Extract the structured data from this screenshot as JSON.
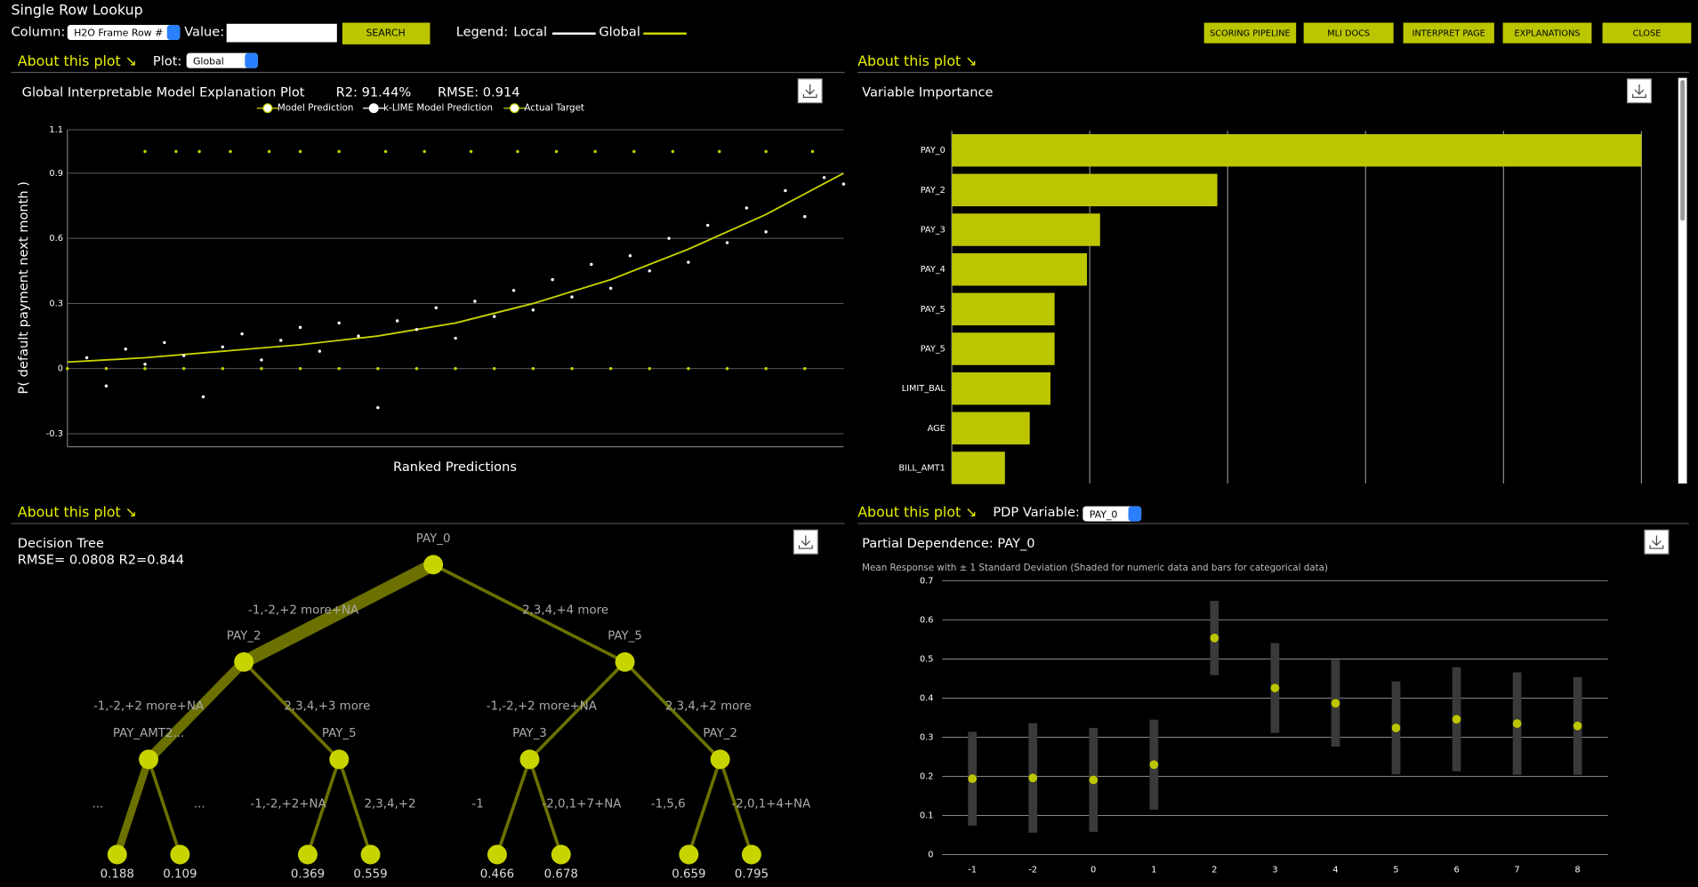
{
  "header": {
    "title": "Single Row Lookup",
    "column_label": "Column:",
    "column_value": "H2O Frame Row #",
    "value_label": "Value:",
    "search": "SEARCH",
    "legend_label": "Legend:",
    "legend_local": "Local",
    "legend_global": "Global",
    "buttons": [
      "SCORING PIPELINE",
      "MLI DOCS",
      "INTERPRET PAGE",
      "EXPLANATIONS",
      "CLOSE"
    ]
  },
  "global_panel": {
    "about": "About this plot ↘",
    "plot_label": "Plot:",
    "plot_value": "Global",
    "chart_data": {
      "type": "scatter",
      "title": "Global Interpretable Model Explanation Plot",
      "r2": "R2: 91.44%",
      "rmse": "RMSE: 0.914",
      "y_label": "P( default payment next month )",
      "x_label": "Ranked Predictions",
      "xlim": [
        0,
        100
      ],
      "ylim": [
        -0.36,
        1.1
      ],
      "yticks": [
        -0.3,
        0,
        0.3,
        0.6,
        0.9,
        1.1
      ],
      "series": [
        {
          "name": "Model Prediction",
          "color": "#c8d400",
          "style": "line",
          "x": [
            0,
            10,
            20,
            30,
            40,
            50,
            60,
            70,
            80,
            90,
            100
          ],
          "values": [
            0.03,
            0.05,
            0.08,
            0.11,
            0.15,
            0.21,
            0.3,
            0.41,
            0.55,
            0.71,
            0.9
          ]
        },
        {
          "name": "k-LIME Model Prediction",
          "color": "#ffffff",
          "style": "points",
          "x": [
            2.5,
            5,
            7.5,
            10,
            12.5,
            15,
            17.5,
            20,
            22.5,
            25,
            27.5,
            30,
            32.5,
            35,
            37.5,
            40,
            42.5,
            45,
            47.5,
            50,
            52.5,
            55,
            57.5,
            60,
            62.5,
            65,
            67.5,
            70,
            72.5,
            75,
            77.5,
            80,
            82.5,
            85,
            87.5,
            90,
            92.5,
            95,
            97.5,
            100
          ],
          "values": [
            0.05,
            -0.08,
            0.09,
            0.02,
            0.12,
            0.06,
            -0.13,
            0.1,
            0.16,
            0.04,
            0.13,
            0.19,
            0.08,
            0.21,
            0.15,
            -0.18,
            0.22,
            0.18,
            0.28,
            0.14,
            0.31,
            0.24,
            0.36,
            0.27,
            0.41,
            0.33,
            0.48,
            0.37,
            0.52,
            0.45,
            0.6,
            0.49,
            0.66,
            0.58,
            0.74,
            0.63,
            0.82,
            0.7,
            0.88,
            0.85
          ]
        },
        {
          "name": "Actual Target",
          "color": "#c8d400",
          "style": "points",
          "x": [
            10,
            14,
            17,
            21,
            26,
            30,
            35,
            41,
            46,
            52,
            58,
            63,
            68,
            73,
            78,
            84,
            90,
            96,
            0,
            5,
            10,
            15,
            20,
            25,
            30,
            35,
            40,
            45,
            50,
            55,
            60,
            65,
            70,
            75,
            80,
            85,
            90,
            95
          ],
          "values": [
            1,
            1,
            1,
            1,
            1,
            1,
            1,
            1,
            1,
            1,
            1,
            1,
            1,
            1,
            1,
            1,
            1,
            1,
            0,
            0,
            0,
            0,
            0,
            0,
            0,
            0,
            0,
            0,
            0,
            0,
            0,
            0,
            0,
            0,
            0,
            0,
            0,
            0
          ]
        }
      ]
    }
  },
  "importance_panel": {
    "about": "About this plot ↘",
    "chart_data": {
      "type": "hbar",
      "title": "Variable Importance",
      "categories": [
        "PAY_0",
        "PAY_2",
        "PAY_3",
        "PAY_4",
        "PAY_5",
        "PAY_5",
        "LIMIT_BAL",
        "AGE",
        "BILL_AMT1"
      ],
      "values": [
        1,
        0.385,
        0.215,
        0.196,
        0.149,
        0.149,
        0.143,
        0.113,
        0.077
      ],
      "color": "#bcc600",
      "xlim": [
        0,
        1
      ],
      "xticks": [
        0,
        0.2,
        0.4,
        0.6,
        0.8,
        1
      ]
    }
  },
  "tree_panel": {
    "about": "About this plot ↘",
    "title": "Decision Tree",
    "metrics": "RMSE= 0.0808 R2=0.844",
    "nodes": [
      "PAY_0",
      "PAY_2",
      "PAY_5",
      "PAY_AMT2...",
      "PAY_5",
      "PAY_3",
      "PAY_2",
      "0.188",
      "0.109",
      "0.369",
      "0.559",
      "0.466",
      "0.678",
      "0.659",
      "0.795"
    ],
    "edges": [
      "-1,-2,+2 more+NA",
      "2,3,4,+4 more",
      "-1,-2,+2 more+NA",
      "2,3,4,+3 more",
      "-1,-2,+2 more+NA",
      "2,3,4,+2 more",
      "...",
      "...",
      "-1,-2,+2+NA",
      "2,3,4,+2",
      "-1",
      "-2,0,1+7+NA",
      "-1,5,6",
      "-2,0,1+4+NA"
    ]
  },
  "pdp_panel": {
    "about": "About this plot ↘",
    "variable_label": "PDP Variable:",
    "variable_value": "PAY_0",
    "chart_data": {
      "type": "errorpoint",
      "title": "Partial Dependence: PAY_0",
      "subtitle": "Mean Response with ± 1 Standard Deviation (Shaded for numeric data and bars for categorical data)",
      "categories": [
        "-1",
        "-2",
        "0",
        "1",
        "2",
        "3",
        "4",
        "5",
        "6",
        "7",
        "8"
      ],
      "values": [
        0.194,
        0.196,
        0.191,
        0.23,
        0.554,
        0.426,
        0.387,
        0.324,
        0.346,
        0.335,
        0.329
      ],
      "std": [
        0.12,
        0.14,
        0.133,
        0.115,
        0.095,
        0.115,
        0.111,
        0.119,
        0.133,
        0.131,
        0.125
      ],
      "color": "#bcc600",
      "bar_color": "#3a3a3a",
      "ylim": [
        0,
        0.7
      ],
      "yticks": [
        0,
        0.1,
        0.2,
        0.3,
        0.4,
        0.5,
        0.6,
        0.7
      ],
      "grid": true
    }
  }
}
